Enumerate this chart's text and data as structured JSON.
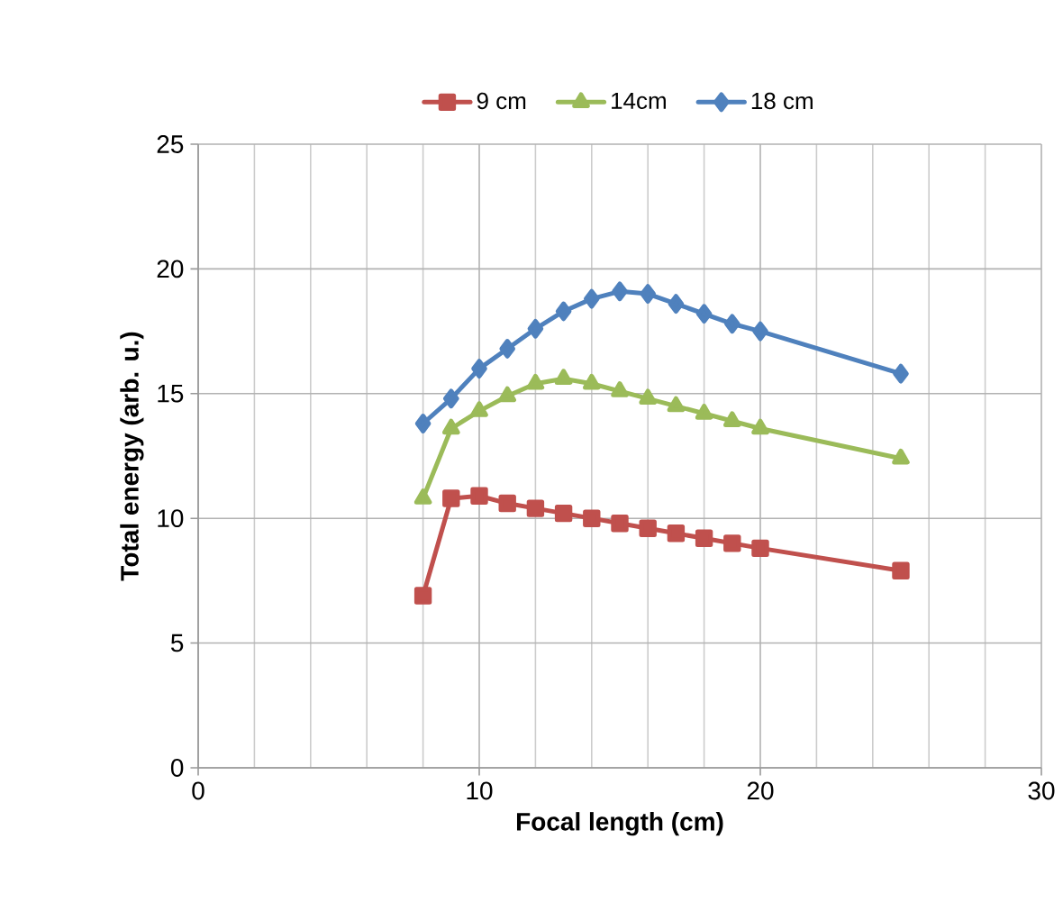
{
  "chart_data": {
    "type": "line",
    "xlabel": "Focal length (cm)",
    "ylabel": "Total energy (arb. u.)",
    "x": [
      8,
      9,
      10,
      11,
      12,
      13,
      14,
      15,
      16,
      17,
      18,
      19,
      20,
      25
    ],
    "series": [
      {
        "name": "9 cm",
        "color": "#c0504d",
        "marker": "square",
        "values": [
          6.9,
          10.8,
          10.9,
          10.6,
          10.4,
          10.2,
          10.0,
          9.8,
          9.6,
          9.4,
          9.2,
          9.0,
          8.8,
          7.9
        ]
      },
      {
        "name": "14cm",
        "color": "#9bbb59",
        "marker": "triangle",
        "values": [
          10.8,
          13.6,
          14.3,
          14.9,
          15.4,
          15.6,
          15.4,
          15.1,
          14.8,
          14.5,
          14.2,
          13.9,
          13.6,
          12.4
        ]
      },
      {
        "name": "18 cm",
        "color": "#4f81bd",
        "marker": "diamond",
        "values": [
          13.8,
          14.8,
          16.0,
          16.8,
          17.6,
          18.3,
          18.8,
          19.1,
          19.0,
          18.6,
          18.2,
          17.8,
          17.5,
          15.8
        ]
      }
    ],
    "xlim": [
      0,
      30
    ],
    "ylim": [
      0,
      25
    ],
    "xticks": [
      0,
      10,
      20,
      30
    ],
    "yticks": [
      0,
      5,
      10,
      15,
      20,
      25
    ],
    "grid": true,
    "legend": "top",
    "line_style": "solid"
  }
}
